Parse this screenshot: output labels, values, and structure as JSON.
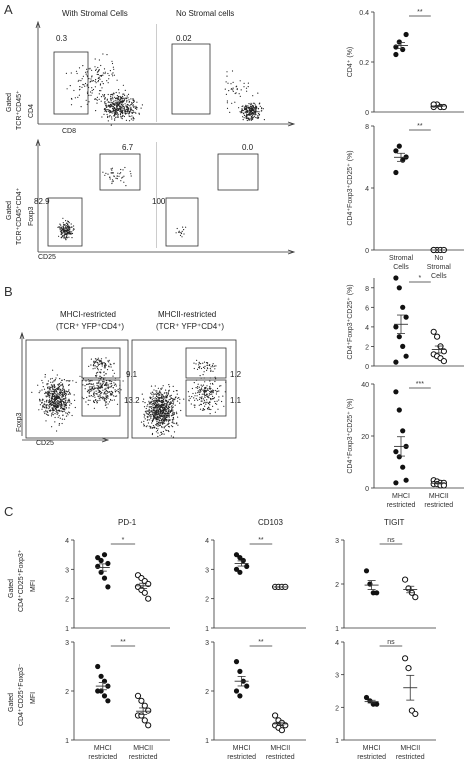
{
  "figure": {
    "panels": [
      "A",
      "B",
      "C"
    ]
  },
  "panelA": {
    "letter": "A",
    "flow": {
      "col_titles": [
        "With Stromal Cells",
        "No Stromal cells"
      ],
      "row1_gate_label_line1": "Gated",
      "row1_gate_label_line2": "TCR⁺CD45⁺",
      "row1_y": "CD4",
      "row1_x": "CD8",
      "row1_gates": [
        "0.3",
        "0.02"
      ],
      "row2_gate_label_line1": "Gated",
      "row2_gate_label_line2": "TCR⁺CD45⁺CD4⁺",
      "row2_y": "Foxp3",
      "row2_x": "CD25",
      "row2_gates_left": [
        "82.9",
        "6.7"
      ],
      "row2_gates_right": [
        "100",
        "0.0"
      ]
    },
    "charts": [
      {
        "type": "scatter",
        "ylabel": "CD4⁺ (%)",
        "yticks": [
          "0",
          "0.2",
          "0.4"
        ],
        "ylim": [
          0,
          0.4
        ],
        "significance": "**",
        "series": [
          {
            "values": [
              0.26,
              0.28,
              0.25,
              0.31,
              0.23
            ],
            "filled": true,
            "group": 0
          },
          {
            "values": [
              0.02,
              0.03,
              0.02,
              0.02,
              0.03
            ],
            "filled": false,
            "group": 1
          }
        ]
      },
      {
        "type": "scatter",
        "ylabel": "CD4⁺Foxp3⁺CD25⁺ (%)",
        "yticks": [
          "0",
          "4",
          "8"
        ],
        "ylim": [
          0,
          8
        ],
        "significance": "**",
        "series": [
          {
            "values": [
              6.4,
              6.7,
              5.8,
              6.0,
              5.0
            ],
            "filled": true,
            "group": 0
          },
          {
            "values": [
              0.0,
              0.0,
              0.0,
              0.0,
              0.0
            ],
            "filled": false,
            "group": 1
          }
        ]
      }
    ],
    "categories": [
      "Stromal Cells",
      "No Stromal Cells"
    ]
  },
  "panelB": {
    "letter": "B",
    "flow": {
      "col_titles_line1": [
        "MHCI-restricted",
        "MHCII-restricted"
      ],
      "col_titles_line2": [
        "(TCR⁺ YFP⁺CD4⁺)",
        "(TCR⁺ YFP⁺CD4⁺)"
      ],
      "y": "Foxp3",
      "x": "CD25",
      "gates_left": [
        "9.1",
        "13.2"
      ],
      "gates_right": [
        "1.2",
        "1.1"
      ]
    },
    "charts": [
      {
        "type": "scatter",
        "ylabel": "CD4⁺Foxp3⁺CD25⁺ (%)",
        "yticks": [
          "0",
          "2",
          "4",
          "6",
          "8"
        ],
        "ylim": [
          0,
          9
        ],
        "significance": "*",
        "series": [
          {
            "values": [
              9.0,
              8.0,
              6.0,
              5.0,
              4.0,
              3.0,
              2.0,
              1.0,
              0.4
            ],
            "filled": true,
            "group": 0
          },
          {
            "values": [
              3.5,
              3.0,
              2.0,
              1.5,
              1.2,
              1.0,
              0.8,
              0.5
            ],
            "filled": false,
            "group": 1
          }
        ]
      },
      {
        "type": "scatter",
        "ylabel": "CD4⁺Foxp3⁺CD25⁺ (%)",
        "yticks": [
          "0",
          "20",
          "40"
        ],
        "ylim": [
          0,
          40
        ],
        "significance": "***",
        "series": [
          {
            "values": [
              37.0,
              30.0,
              22.0,
              16.0,
              14.0,
              12.0,
              8.0,
              3.0,
              2.0
            ],
            "filled": true,
            "group": 0
          },
          {
            "values": [
              3.0,
              2.5,
              2.0,
              2.0,
              1.5,
              1.5,
              1.0,
              1.0
            ],
            "filled": false,
            "group": 1
          }
        ]
      }
    ],
    "categories": [
      "MHCI restricted",
      "MHCII restricted"
    ]
  },
  "panelC": {
    "letter": "C",
    "row_labels": [
      {
        "line1": "Gated",
        "line2": "CD4⁺CD25⁺Foxp3⁺",
        "line3": "MFI"
      },
      {
        "line1": "Gated",
        "line2": "CD4⁺CD25⁺Foxp3⁻",
        "line3": "MFI"
      }
    ],
    "col_titles": [
      "PD-1",
      "CD103",
      "TIGIT"
    ],
    "categories": [
      "MHCI restricted",
      "MHCII restricted"
    ],
    "charts": [
      {
        "type": "scatter",
        "yticks": [
          "1",
          "2",
          "3",
          "4"
        ],
        "ylim": [
          1,
          4
        ],
        "significance": "*",
        "series": [
          {
            "values": [
              3.4,
              3.3,
              3.5,
              3.2,
              3.1,
              2.9,
              2.7,
              2.4
            ],
            "filled": true,
            "group": 0
          },
          {
            "values": [
              2.8,
              2.7,
              2.6,
              2.5,
              2.4,
              2.3,
              2.2,
              2.0
            ],
            "filled": false,
            "group": 1
          }
        ]
      },
      {
        "type": "scatter",
        "yticks": [
          "1",
          "2",
          "3",
          "4"
        ],
        "ylim": [
          1,
          4
        ],
        "significance": "**",
        "series": [
          {
            "values": [
              3.5,
              3.4,
              3.3,
              3.1,
              3.0,
              2.9
            ],
            "filled": true,
            "group": 0
          },
          {
            "values": [
              2.4,
              2.4,
              2.4,
              2.4
            ],
            "filled": false,
            "group": 1
          }
        ]
      },
      {
        "type": "scatter",
        "yticks": [
          "1",
          "2",
          "3"
        ],
        "ylim": [
          1,
          3
        ],
        "significance": "ns",
        "series": [
          {
            "values": [
              2.3,
              2.0,
              1.8,
              1.8
            ],
            "filled": true,
            "group": 0
          },
          {
            "values": [
              2.1,
              1.9,
              1.8,
              1.7
            ],
            "filled": false,
            "group": 1
          }
        ]
      },
      {
        "type": "scatter",
        "yticks": [
          "1",
          "2",
          "3"
        ],
        "ylim": [
          1,
          3
        ],
        "significance": "**",
        "series": [
          {
            "values": [
              2.5,
              2.3,
              2.2,
              2.1,
              2.0,
              2.0,
              1.9,
              1.8
            ],
            "filled": true,
            "group": 0
          },
          {
            "values": [
              1.9,
              1.8,
              1.7,
              1.6,
              1.5,
              1.5,
              1.4,
              1.3
            ],
            "filled": false,
            "group": 1
          }
        ]
      },
      {
        "type": "scatter",
        "yticks": [
          "1",
          "2",
          "3"
        ],
        "ylim": [
          1,
          3
        ],
        "significance": "**",
        "series": [
          {
            "values": [
              2.6,
              2.4,
              2.2,
              2.1,
              2.0,
              1.9
            ],
            "filled": true,
            "group": 0
          },
          {
            "values": [
              1.5,
              1.4,
              1.35,
              1.3,
              1.3,
              1.25,
              1.2
            ],
            "filled": false,
            "group": 1
          }
        ]
      },
      {
        "type": "scatter",
        "yticks": [
          "1",
          "2",
          "3",
          "4"
        ],
        "ylim": [
          1,
          4
        ],
        "significance": "ns",
        "series": [
          {
            "values": [
              2.3,
              2.2,
              2.1,
              2.1
            ],
            "filled": true,
            "group": 0
          },
          {
            "values": [
              3.5,
              3.2,
              1.9,
              1.8
            ],
            "filled": false,
            "group": 1
          }
        ]
      }
    ]
  },
  "chart_data": [
    {
      "type": "scatter",
      "panel": "A",
      "ylabel": "CD4⁺ (%)",
      "categories": [
        "Stromal Cells",
        "No Stromal Cells"
      ],
      "ylim": [
        0,
        0.4
      ],
      "series": [
        {
          "values": [
            0.26,
            0.28,
            0.25,
            0.31,
            0.23
          ]
        },
        {
          "values": [
            0.02,
            0.03,
            0.02,
            0.02,
            0.03
          ]
        }
      ]
    },
    {
      "type": "scatter",
      "panel": "A",
      "ylabel": "CD4⁺Foxp3⁺CD25⁺ (%)",
      "categories": [
        "Stromal Cells",
        "No Stromal Cells"
      ],
      "ylim": [
        0,
        8
      ],
      "series": [
        {
          "values": [
            6.4,
            6.7,
            5.8,
            6.0,
            5.0
          ]
        },
        {
          "values": [
            0,
            0,
            0,
            0,
            0
          ]
        }
      ]
    },
    {
      "type": "scatter",
      "panel": "B",
      "ylabel": "CD4⁺Foxp3⁺CD25⁺ (%)",
      "categories": [
        "MHCI restricted",
        "MHCII restricted"
      ],
      "ylim": [
        0,
        9
      ],
      "series": [
        {
          "values": [
            9.0,
            8.0,
            6.0,
            5.0,
            4.0,
            3.0,
            2.0,
            1.0,
            0.4
          ]
        },
        {
          "values": [
            3.5,
            3.0,
            2.0,
            1.5,
            1.2,
            1.0,
            0.8,
            0.5
          ]
        }
      ]
    },
    {
      "type": "scatter",
      "panel": "B",
      "ylabel": "CD4⁺Foxp3⁺CD25⁺ (%)",
      "categories": [
        "MHCI restricted",
        "MHCII restricted"
      ],
      "ylim": [
        0,
        40
      ],
      "series": [
        {
          "values": [
            37,
            30,
            22,
            16,
            14,
            12,
            8,
            3,
            2
          ]
        },
        {
          "values": [
            3,
            2.5,
            2,
            2,
            1.5,
            1.5,
            1,
            1
          ]
        }
      ]
    }
  ]
}
